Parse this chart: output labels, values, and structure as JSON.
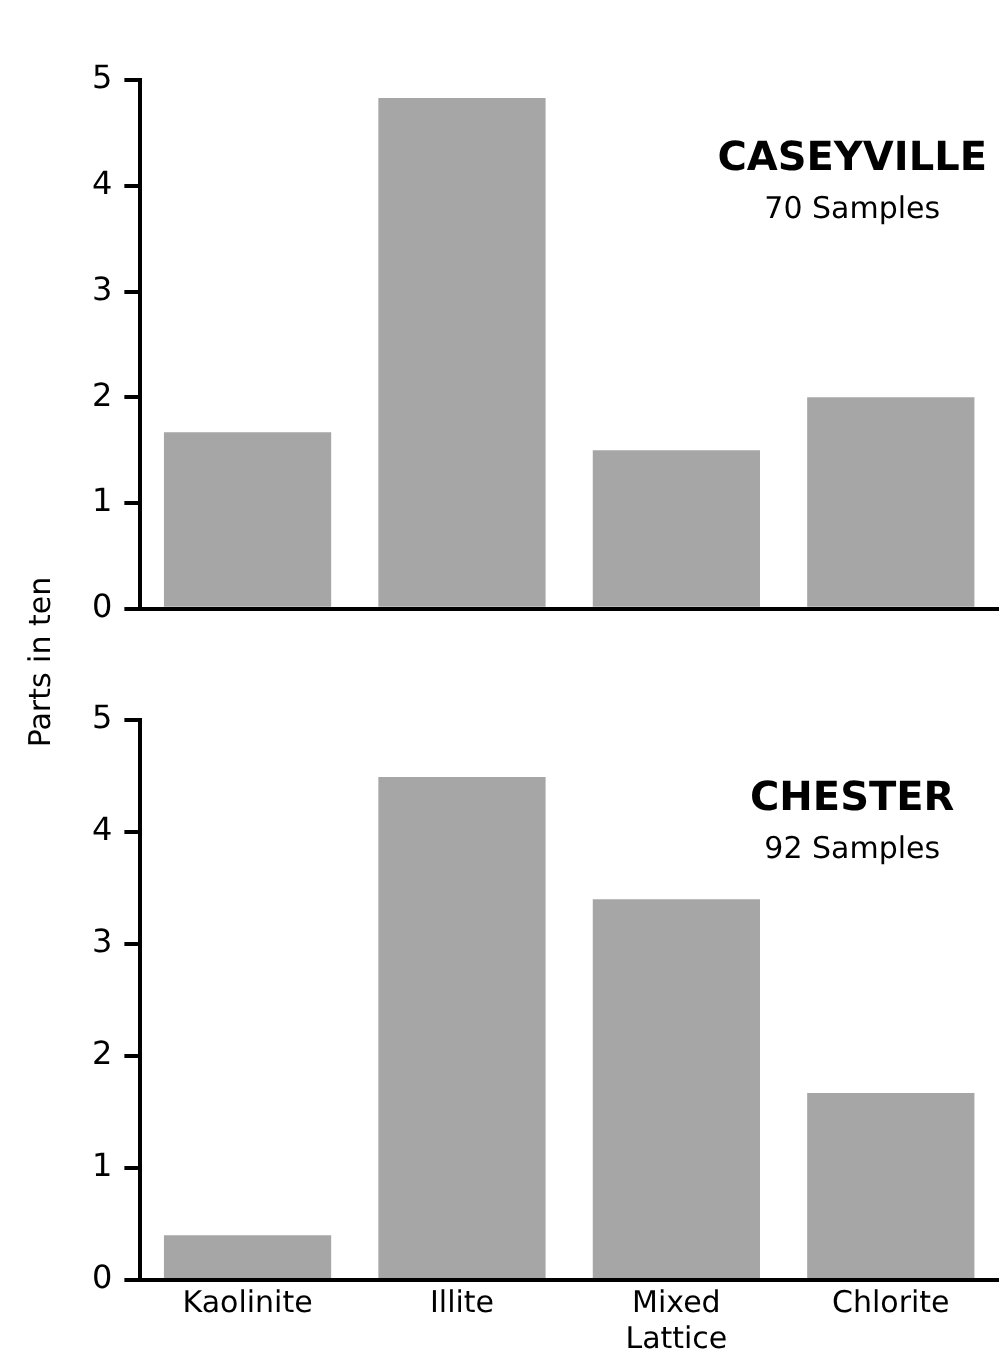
{
  "chart_data": [
    {
      "type": "bar",
      "title": "CASEYVILLE",
      "subtitle": "70 Samples",
      "ylabel": "Parts in ten",
      "categories": [
        null,
        null,
        null,
        null
      ],
      "values": [
        1.67,
        4.83,
        1.5,
        2.0
      ],
      "color": "#a6a6a6",
      "ylim": [
        0,
        5
      ],
      "yticks": [
        0,
        1,
        2,
        3,
        4,
        5
      ],
      "grid": false,
      "legend": false,
      "tick_labels": "y"
    },
    {
      "type": "bar",
      "title": "CHESTER",
      "subtitle": "92 Samples",
      "categories": [
        "Kaolinite",
        "Illite",
        "Mixed Lattice",
        "Chlorite"
      ],
      "values": [
        0.4,
        4.49,
        3.4,
        1.67
      ],
      "color": "#a6a6a6",
      "ylim": [
        0,
        5
      ],
      "yticks": [
        0,
        1,
        2,
        3,
        4,
        5
      ],
      "grid": false,
      "legend": false
    }
  ]
}
